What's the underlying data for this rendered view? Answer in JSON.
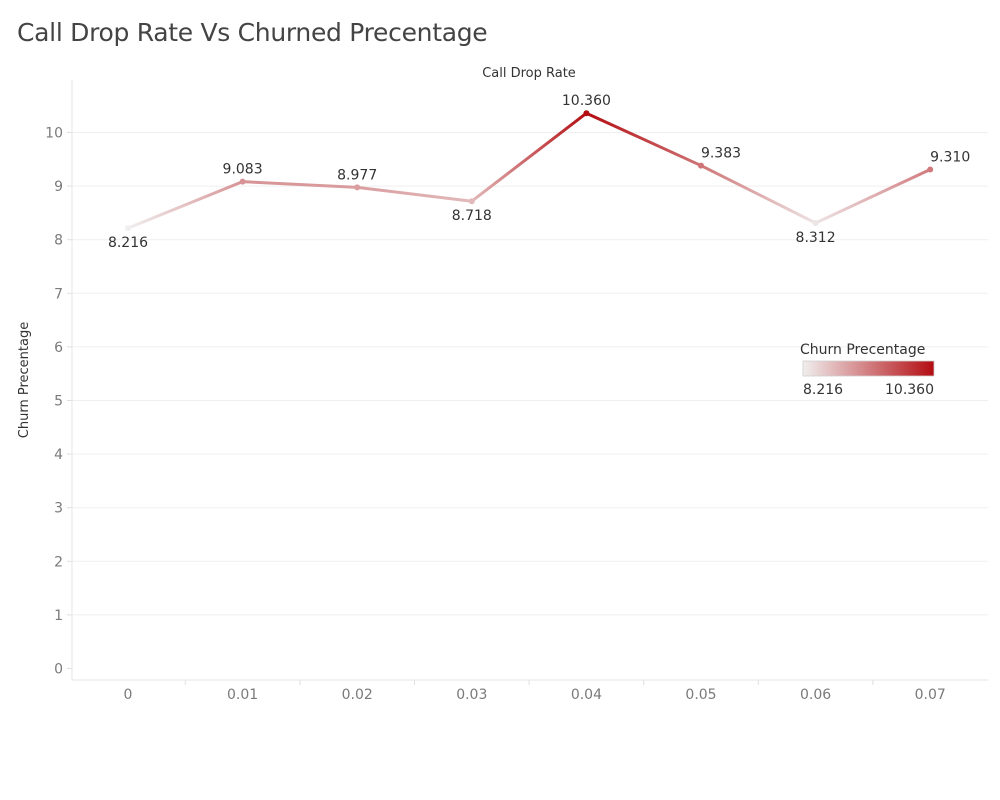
{
  "title": "Call Drop Rate Vs Churned Precentage",
  "chart_data": {
    "type": "line",
    "title": "Call Drop Rate Vs Churned Precentage",
    "xlabel": "Call Drop Rate",
    "ylabel": "Churn Precentage",
    "categories": [
      "0",
      "0.01",
      "0.02",
      "0.03",
      "0.04",
      "0.05",
      "0.06",
      "0.07"
    ],
    "values": [
      8.216,
      9.083,
      8.977,
      8.718,
      10.36,
      9.383,
      8.312,
      9.31
    ],
    "data_labels": [
      "8.216",
      "9.083",
      "8.977",
      "8.718",
      "10.360",
      "9.383",
      "8.312",
      "9.310"
    ],
    "y_ticks": [
      "0",
      "1",
      "2",
      "3",
      "4",
      "5",
      "6",
      "7",
      "8",
      "9",
      "10"
    ],
    "ylim": [
      0,
      10.36
    ],
    "grid": true,
    "color_scale": {
      "title": "Churn Precentage",
      "min_label": "8.216",
      "max_label": "10.360",
      "min": 8.216,
      "max": 10.36,
      "color_low": "#f0eeee",
      "color_high": "#b30d12"
    },
    "legend_position": "right"
  }
}
